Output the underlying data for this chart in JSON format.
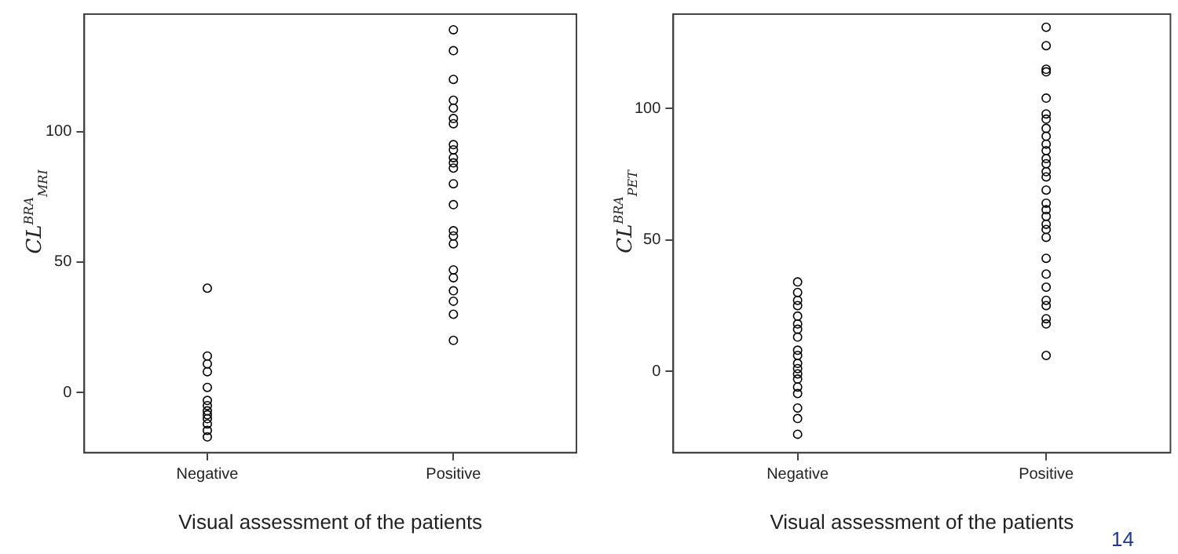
{
  "chart_data": [
    {
      "type": "scatter",
      "categories": [
        "Negative",
        "Positive"
      ],
      "xlabel": "Visual assessment of the patients",
      "ylabel": "CL$^{BRA}$$_{MRI}$",
      "ylim": [
        -23,
        145
      ],
      "yticks": [
        0,
        50,
        100
      ],
      "grid": false,
      "legend": false,
      "marker": "circle",
      "series": [
        {
          "color": "#000000",
          "x": [
            "Negative",
            "Negative",
            "Negative",
            "Negative",
            "Negative",
            "Negative",
            "Negative",
            "Negative",
            "Negative",
            "Negative",
            "Negative",
            "Negative",
            "Negative",
            "Positive",
            "Positive",
            "Positive",
            "Positive",
            "Positive",
            "Positive",
            "Positive",
            "Positive",
            "Positive",
            "Positive",
            "Positive",
            "Positive",
            "Positive",
            "Positive",
            "Positive",
            "Positive",
            "Positive",
            "Positive",
            "Positive",
            "Positive",
            "Positive",
            "Positive",
            "Positive"
          ],
          "values": [
            40,
            14,
            11,
            8,
            2,
            -3,
            -5,
            -7,
            -8.5,
            -10,
            -12,
            -14.5,
            -17,
            139,
            131,
            120,
            112,
            109,
            105,
            103,
            95,
            93,
            90,
            88,
            86,
            80,
            72,
            62,
            60,
            57,
            47,
            44,
            39,
            35,
            30,
            20
          ]
        }
      ]
    },
    {
      "type": "scatter",
      "categories": [
        "Negative",
        "Positive"
      ],
      "xlabel": "Visual assessment of the patients",
      "ylabel": "CL$^{BRA}$$_{PET}$",
      "ylim": [
        -31,
        136
      ],
      "yticks": [
        0,
        50,
        100
      ],
      "grid": false,
      "legend": false,
      "marker": "circle",
      "annotations": [
        "14"
      ],
      "series": [
        {
          "color": "#000000",
          "x": [
            "Negative",
            "Negative",
            "Negative",
            "Negative",
            "Negative",
            "Negative",
            "Negative",
            "Negative",
            "Negative",
            "Negative",
            "Negative",
            "Negative",
            "Negative",
            "Negative",
            "Negative",
            "Negative",
            "Negative",
            "Negative",
            "Negative",
            "Positive",
            "Positive",
            "Positive",
            "Positive",
            "Positive",
            "Positive",
            "Positive",
            "Positive",
            "Positive",
            "Positive",
            "Positive",
            "Positive",
            "Positive",
            "Positive",
            "Positive",
            "Positive",
            "Positive",
            "Positive",
            "Positive",
            "Positive",
            "Positive",
            "Positive",
            "Positive",
            "Positive",
            "Positive",
            "Positive",
            "Positive",
            "Positive",
            "Positive",
            "Positive"
          ],
          "values": [
            34,
            30,
            27,
            25,
            21,
            18,
            16,
            13,
            8,
            6,
            3,
            1,
            -1,
            -3,
            -6,
            -8.5,
            -14,
            -18,
            -24,
            131,
            124,
            115,
            114,
            104,
            98,
            96,
            92.5,
            89.5,
            86.5,
            84,
            81,
            79,
            76,
            74,
            69,
            64,
            61.5,
            59,
            56,
            54,
            51,
            43,
            37,
            32,
            27,
            25,
            20,
            18,
            6
          ]
        }
      ]
    }
  ]
}
